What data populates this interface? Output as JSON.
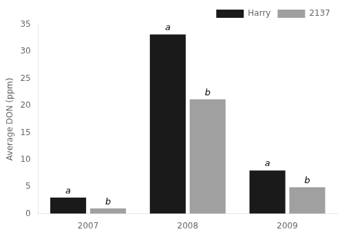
{
  "chart_data": {
    "type": "bar",
    "categories": [
      "2007",
      "2008",
      "2009"
    ],
    "series": [
      {
        "name": "Harry",
        "color": "#1a1a1a",
        "values": [
          3.0,
          33.2,
          8.0
        ],
        "annotations": [
          "a",
          "a",
          "a"
        ]
      },
      {
        "name": "2137",
        "color": "#a0a0a0",
        "values": [
          1.0,
          21.2,
          4.9
        ],
        "annotations": [
          "b",
          "b",
          "b"
        ]
      }
    ],
    "ylabel": "Average DON (ppm)",
    "ylim": [
      0,
      35
    ],
    "yticks": [
      0,
      5,
      10,
      15,
      20,
      25,
      30,
      35
    ],
    "grid": false,
    "legend": "upper right"
  }
}
